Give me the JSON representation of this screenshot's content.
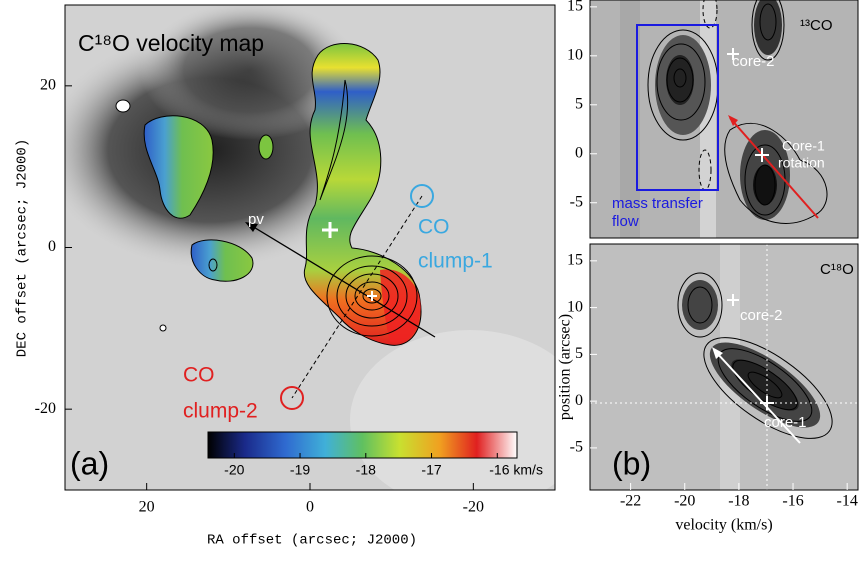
{
  "chart_data": [
    {
      "type": "image",
      "title": "C¹⁸O velocity map",
      "xlabel": "RA offset (arcsec; J2000)",
      "ylabel": "DEC offset (arcsec; J2000)",
      "xlim": [
        30,
        -30
      ],
      "ylim": [
        -30,
        30
      ],
      "xticks": [
        20,
        0,
        -20
      ],
      "yticks": [
        -20,
        0,
        20
      ],
      "colorbar": {
        "lim": [
          -20.4,
          -15.7
        ],
        "ticks": [
          -20,
          -19,
          -18,
          -17,
          {
            "value": -16,
            "label": "-16 km/s"
          }
        ]
      },
      "annotations": [
        "pv",
        "CO",
        "clump-1",
        "CO",
        "clump-2"
      ],
      "panel_label": "(a)"
    },
    {
      "type": "image",
      "title": "¹³CO",
      "xlim": [
        -23.5,
        -13.6
      ],
      "ylim": [
        -8.6,
        15.7
      ],
      "yticks": [
        -5,
        0,
        5,
        10,
        15
      ],
      "annotations": [
        "core-2",
        "Core-1",
        "rotation",
        "mass transfer",
        "flow"
      ]
    },
    {
      "type": "image",
      "title": "C¹⁸O",
      "xlabel": "velocity (km/s)",
      "ylabel": "position (arcsec)",
      "xlim": [
        -23.5,
        -13.6
      ],
      "ylim": [
        -9.5,
        16.8
      ],
      "xticks": [
        -22,
        -20,
        -18,
        -16,
        -14
      ],
      "yticks": [
        -5,
        0,
        5,
        10,
        15
      ],
      "annotations": [
        "core-2",
        "core-1"
      ],
      "panel_label": "(b)"
    }
  ]
}
